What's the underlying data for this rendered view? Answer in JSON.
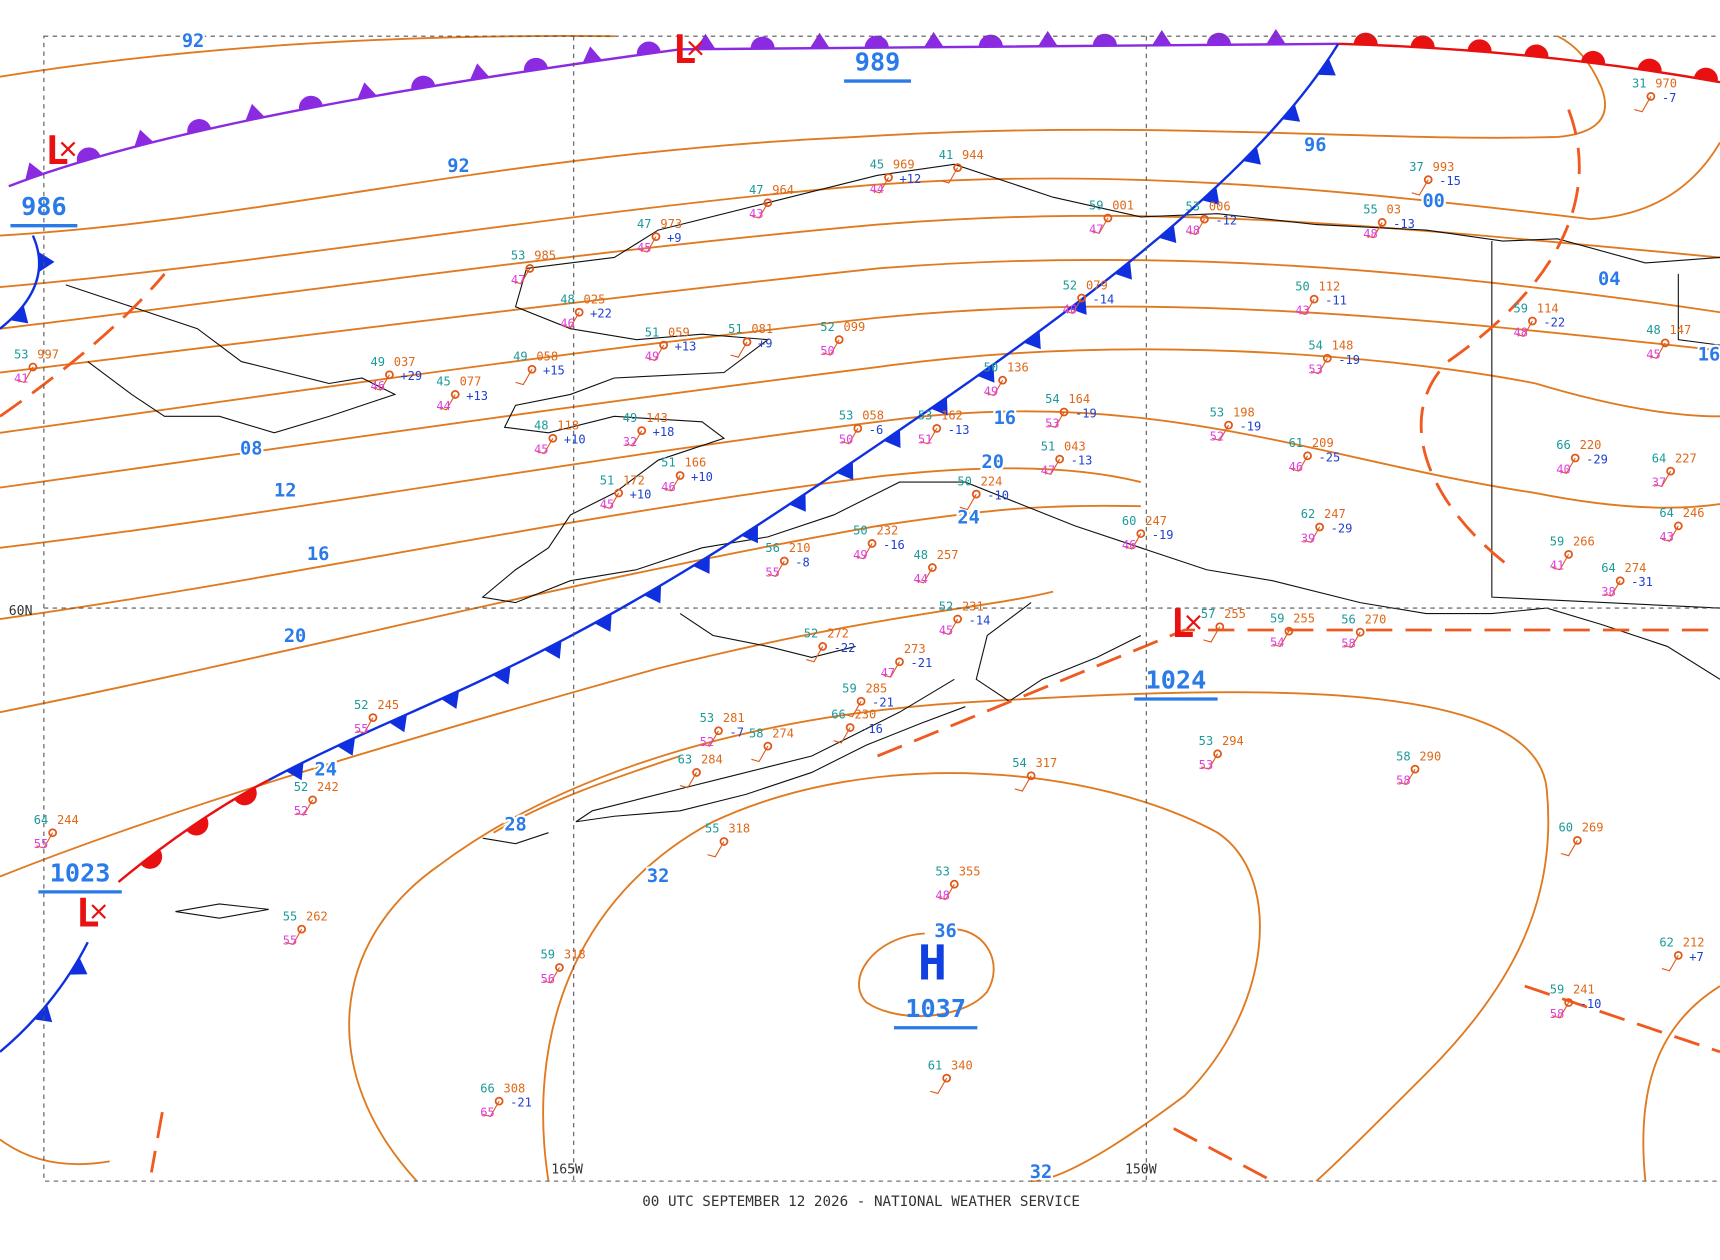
{
  "footer": "00 UTC SEPTEMBER 12 2026 - NATIONAL WEATHER SERVICE",
  "grid_labels": [
    "60N",
    "165W",
    "150W"
  ],
  "pressure_centers": [
    {
      "symbol": "L",
      "pressure": "986"
    },
    {
      "symbol": "L",
      "pressure": "989"
    },
    {
      "symbol": "L",
      "pressure": "1023"
    },
    {
      "symbol": "L",
      "pressure": "1024"
    },
    {
      "symbol": "H",
      "pressure": "1037"
    }
  ],
  "isobar_labels": [
    "92",
    "92",
    "96",
    "00",
    "04",
    "08",
    "12",
    "16",
    "16",
    "20",
    "20",
    "24",
    "24",
    "28",
    "32",
    "32",
    "36",
    "16"
  ],
  "stations": [
    {
      "temp": "53",
      "pressure": "985",
      "dewpoint": "47"
    },
    {
      "temp": "47",
      "pressure": "973",
      "dewpoint": "45",
      "tendency": "+9"
    },
    {
      "temp": "47",
      "pressure": "964",
      "dewpoint": "43"
    },
    {
      "temp": "45",
      "pressure": "969",
      "dewpoint": "44",
      "tendency": "+12"
    },
    {
      "temp": "41",
      "pressure": "944"
    },
    {
      "temp": "59",
      "pressure": "001",
      "dewpoint": "47"
    },
    {
      "temp": "53",
      "pressure": "006",
      "dewpoint": "48",
      "tendency": "-12"
    },
    {
      "temp": "55",
      "pressure": "03",
      "dewpoint": "48",
      "tendency": "-13"
    },
    {
      "temp": "37",
      "pressure": "993",
      "tendency": "-15"
    },
    {
      "temp": "31",
      "pressure": "970",
      "tendency": "-7"
    },
    {
      "temp": "53",
      "pressure": "997",
      "dewpoint": "41"
    },
    {
      "temp": "49",
      "pressure": "037",
      "dewpoint": "46",
      "tendency": "+29"
    },
    {
      "temp": "49",
      "pressure": "058",
      "tendency": "+15"
    },
    {
      "temp": "45",
      "pressure": "077",
      "dewpoint": "44",
      "tendency": "+13"
    },
    {
      "temp": "48",
      "pressure": "025",
      "dewpoint": "46",
      "tendency": "+22"
    },
    {
      "temp": "51",
      "pressure": "059",
      "dewpoint": "49",
      "tendency": "+13"
    },
    {
      "temp": "51",
      "pressure": "081",
      "tendency": "+9"
    },
    {
      "temp": "52",
      "pressure": "099",
      "dewpoint": "50"
    },
    {
      "temp": "52",
      "pressure": "079",
      "dewpoint": "40",
      "tendency": "-14"
    },
    {
      "temp": "54",
      "pressure": "148",
      "dewpoint": "53",
      "tendency": "-19"
    },
    {
      "temp": "50",
      "pressure": "112",
      "dewpoint": "43",
      "tendency": "-11"
    },
    {
      "temp": "59",
      "pressure": "114",
      "dewpoint": "48",
      "tendency": "-22"
    },
    {
      "temp": "48",
      "pressure": "147",
      "dewpoint": "45"
    },
    {
      "temp": "50",
      "pressure": "136",
      "dewpoint": "49"
    },
    {
      "temp": "54",
      "pressure": "164",
      "dewpoint": "53",
      "tendency": "-19"
    },
    {
      "temp": "53",
      "pressure": "058",
      "dewpoint": "50",
      "tendency": "-6"
    },
    {
      "temp": "53",
      "pressure": "162",
      "dewpoint": "51",
      "tendency": "-13"
    },
    {
      "temp": "51",
      "pressure": "043",
      "dewpoint": "47",
      "tendency": "-13"
    },
    {
      "temp": "53",
      "pressure": "198",
      "dewpoint": "52",
      "tendency": "-19"
    },
    {
      "temp": "61",
      "pressure": "209",
      "dewpoint": "46",
      "tendency": "-25"
    },
    {
      "temp": "66",
      "pressure": "220",
      "dewpoint": "40",
      "tendency": "-29"
    },
    {
      "temp": "64",
      "pressure": "227",
      "dewpoint": "37"
    },
    {
      "temp": "62",
      "pressure": "247",
      "dewpoint": "39",
      "tendency": "-29"
    },
    {
      "temp": "60",
      "pressure": "247",
      "dewpoint": "46",
      "tendency": "-19"
    },
    {
      "temp": "49",
      "pressure": "143",
      "dewpoint": "32",
      "tendency": "+18"
    },
    {
      "temp": "48",
      "pressure": "118",
      "dewpoint": "45",
      "tendency": "+10"
    },
    {
      "temp": "51",
      "pressure": "166",
      "dewpoint": "46",
      "tendency": "+10"
    },
    {
      "temp": "51",
      "pressure": "172",
      "dewpoint": "45",
      "tendency": "+10"
    },
    {
      "temp": "56",
      "pressure": "210",
      "dewpoint": "55",
      "tendency": "-8"
    },
    {
      "temp": "50",
      "pressure": "232",
      "dewpoint": "49",
      "tendency": "-16"
    },
    {
      "temp": "48",
      "pressure": "257",
      "dewpoint": "44"
    },
    {
      "temp": "50",
      "pressure": "224",
      "tendency": "-10"
    },
    {
      "temp": "52",
      "pressure": "231",
      "dewpoint": "45",
      "tendency": "-14"
    },
    {
      "pressure": "273",
      "dewpoint": "47",
      "tendency": "-21"
    },
    {
      "temp": "52",
      "pressure": "272",
      "tendency": "-22"
    },
    {
      "temp": "59",
      "pressure": "285",
      "tendency": "-21"
    },
    {
      "temp": "66",
      "pressure": "230",
      "tendency": "-16"
    },
    {
      "temp": "53",
      "pressure": "294",
      "dewpoint": "53"
    },
    {
      "temp": "58",
      "pressure": "290",
      "dewpoint": "58"
    },
    {
      "temp": "54",
      "pressure": "317"
    },
    {
      "temp": "55",
      "pressure": "318"
    },
    {
      "temp": "53",
      "pressure": "355",
      "dewpoint": "48"
    },
    {
      "temp": "61",
      "pressure": "340"
    },
    {
      "temp": "59",
      "pressure": "318",
      "dewpoint": "56"
    },
    {
      "temp": "66",
      "pressure": "308",
      "dewpoint": "65",
      "tendency": "-21"
    },
    {
      "temp": "55",
      "pressure": "262",
      "dewpoint": "55"
    },
    {
      "temp": "64",
      "pressure": "244",
      "dewpoint": "55"
    },
    {
      "temp": "52",
      "pressure": "242",
      "dewpoint": "52"
    },
    {
      "temp": "52",
      "pressure": "245",
      "dewpoint": "55"
    },
    {
      "temp": "60",
      "pressure": "269"
    },
    {
      "temp": "62",
      "pressure": "212",
      "tendency": "+7"
    },
    {
      "temp": "59",
      "pressure": "241",
      "dewpoint": "58",
      "tendency": "-10"
    },
    {
      "temp": "59",
      "pressure": "266",
      "dewpoint": "41"
    },
    {
      "temp": "64",
      "pressure": "274",
      "dewpoint": "38",
      "tendency": "-31"
    },
    {
      "temp": "64",
      "pressure": "246",
      "dewpoint": "43"
    },
    {
      "temp": "56",
      "pressure": "270",
      "dewpoint": "58"
    },
    {
      "temp": "59",
      "pressure": "255",
      "dewpoint": "54"
    },
    {
      "temp": "57",
      "pressure": "255"
    },
    {
      "temp": "53",
      "pressure": "281",
      "dewpoint": "52",
      "tendency": "-7"
    },
    {
      "temp": "63",
      "pressure": "284"
    },
    {
      "temp": "58",
      "pressure": "274"
    }
  ]
}
